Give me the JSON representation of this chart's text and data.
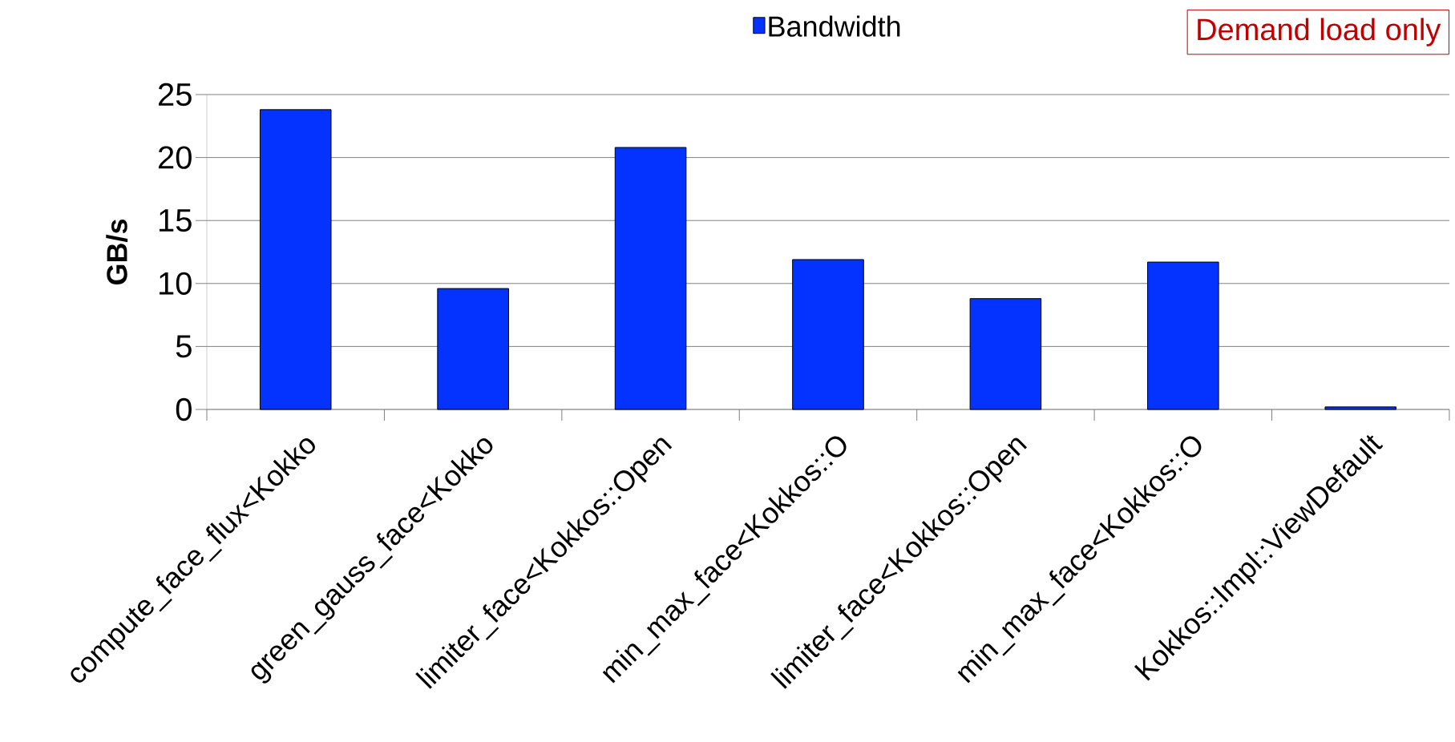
{
  "chart_data": {
    "type": "bar",
    "ylabel": "GB/s",
    "categories": [
      "compute_face_flux<Kokko",
      "green_gauss_face<Kokko",
      "limiter_face<Kokkos::Open",
      "min_max_face<Kokkos::O",
      "limiter_face<Kokkos::Open",
      "min_max_face<Kokkos::O",
      "Kokkos::Impl::ViewDefault"
    ],
    "series": [
      {
        "name": "Bandwidth",
        "color": "#0433ff",
        "values": [
          23.8,
          9.6,
          20.8,
          11.9,
          8.8,
          11.7,
          0.2
        ]
      }
    ],
    "ylim": [
      0,
      25
    ],
    "yticks": [
      0,
      5,
      10,
      15,
      20,
      25
    ],
    "grid": "y",
    "legend": "top",
    "annotations": [
      "Demand load only"
    ]
  }
}
